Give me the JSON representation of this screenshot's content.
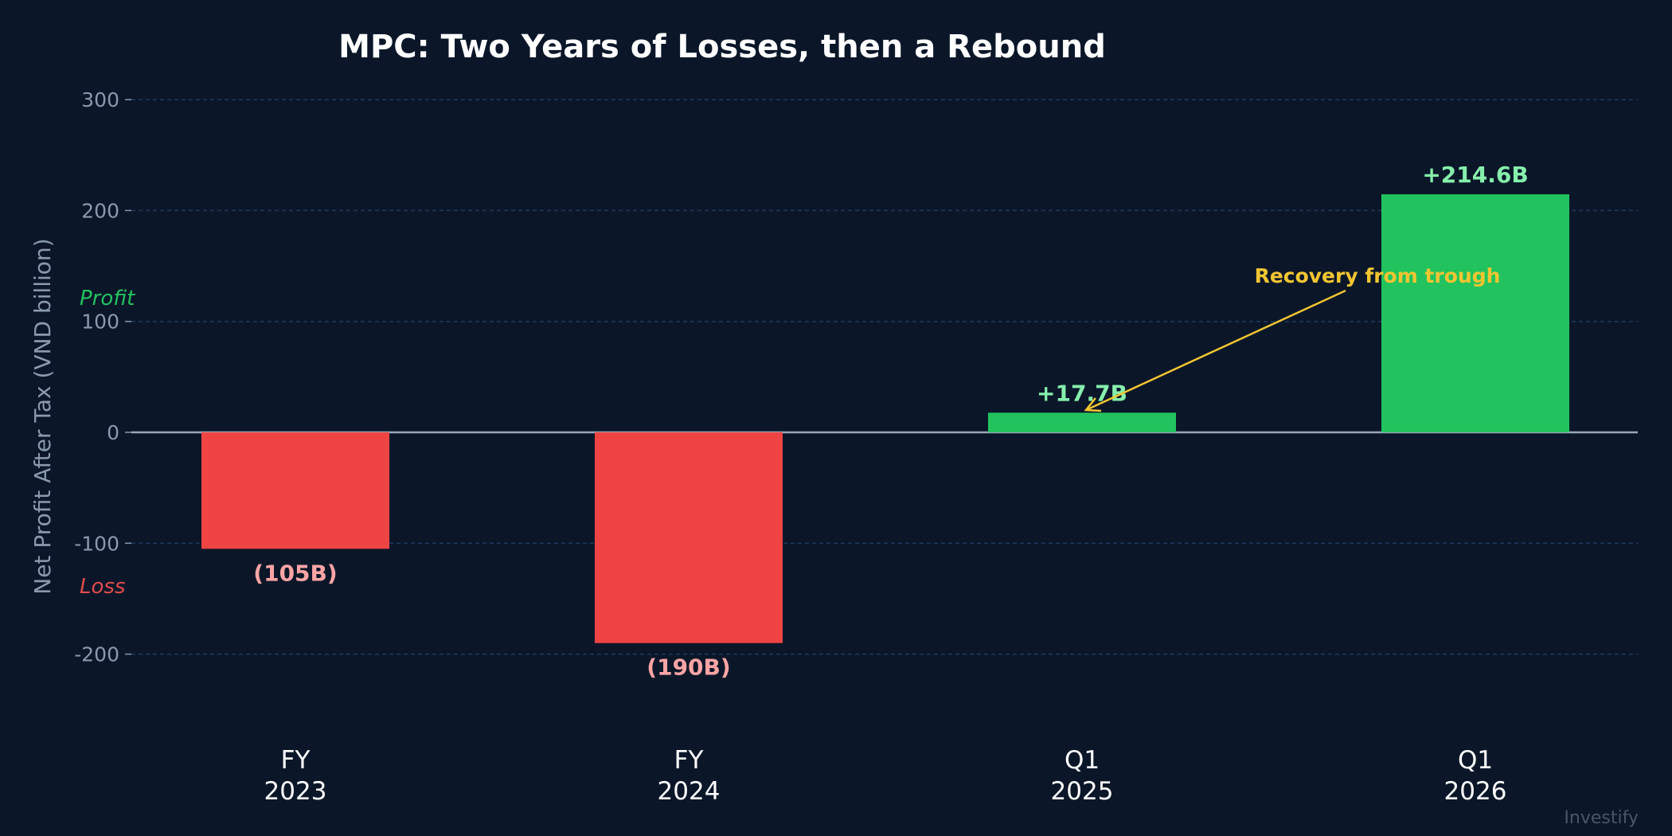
{
  "chart_data": {
    "type": "bar",
    "title": "MPC: Two Years of Losses, then a Rebound",
    "ylabel": "Net Profit After Tax (VND billion)",
    "categories": [
      [
        "FY",
        "2023"
      ],
      [
        "FY",
        "2024"
      ],
      [
        "Q1",
        "2025"
      ],
      [
        "Q1",
        "2026"
      ]
    ],
    "values": [
      -105,
      -190,
      17.7,
      214.6
    ],
    "data_labels": [
      "(105B)",
      "(190B)",
      "+17.7B",
      "+214.6B"
    ],
    "ylim": [
      -250,
      300
    ],
    "yticks": [
      300,
      200,
      100,
      0,
      -100,
      -200
    ],
    "grid": true,
    "zone_labels": {
      "profit": "Profit",
      "loss": "Loss"
    },
    "annotation": {
      "text": "Recovery from trough",
      "points_to_category_index": 2
    },
    "colors": {
      "background": "#0b1729",
      "positive": "#22c35e",
      "negative": "#ef4444",
      "positive_label": "#86efac",
      "negative_label": "#fca5a5",
      "annotation": "#f2c531",
      "grid": "#1e3a5f",
      "zero_line": "#9aa7b8",
      "profit_zone": "#22c35e",
      "loss_zone": "#e24b4b"
    }
  },
  "watermark": "Investify"
}
